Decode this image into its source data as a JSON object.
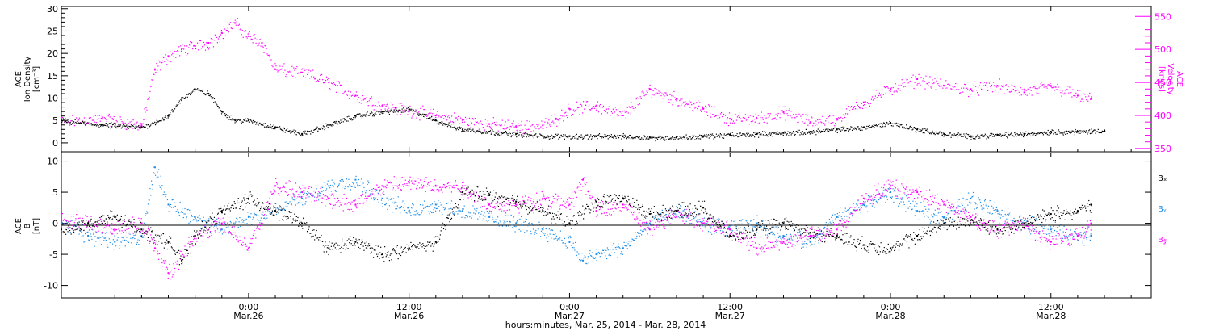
{
  "colors": {
    "black": "#000000",
    "magenta": "#ff00ff",
    "blue": "#1e8ce6"
  },
  "xaxis": {
    "title": "hours:minutes, Mar. 25, 2014 - Mar. 28, 2014",
    "ticks": [
      {
        "time": "0:00",
        "date": "Mar.26",
        "hours": 24
      },
      {
        "time": "12:00",
        "date": "Mar.26",
        "hours": 36
      },
      {
        "time": "0:00",
        "date": "Mar.27",
        "hours": 48
      },
      {
        "time": "12:00",
        "date": "Mar.27",
        "hours": 60
      },
      {
        "time": "0:00",
        "date": "Mar.28",
        "hours": 72
      },
      {
        "time": "12:00",
        "date": "Mar.28",
        "hours": 84
      }
    ]
  },
  "top_panel": {
    "left_label": [
      "ACE",
      "Ion Density",
      "[cm⁻³]"
    ],
    "right_label": [
      "ACE",
      "Velocity",
      "[km/s]"
    ]
  },
  "bottom_panel": {
    "left_label": [
      "ACE",
      "B",
      "[nT]"
    ],
    "legend": [
      "Bₓ",
      "Bᵧ",
      "B𝓏"
    ]
  },
  "chart_data": [
    {
      "type": "scatter",
      "panel": "top",
      "xlim_hours": [
        10,
        91.5
      ],
      "ylim": [
        -2,
        30.5
      ],
      "yticks": [
        "30",
        "25",
        "20",
        "15",
        "10",
        "5",
        "0"
      ],
      "y2lim": [
        345,
        565
      ],
      "y2ticks": [
        "550",
        "500",
        "450",
        "400",
        "350"
      ],
      "series": [
        {
          "name": "Ion Density",
          "axis": "left",
          "color": "#000000",
          "x": [
            10,
            13,
            16,
            18,
            19,
            20,
            21,
            22,
            23,
            24,
            26,
            28,
            30,
            32,
            34,
            36,
            38,
            40,
            42,
            44,
            46,
            48,
            50,
            52,
            54,
            56,
            58,
            60,
            62,
            64,
            66,
            68,
            70,
            72,
            74,
            76,
            78,
            80,
            82,
            84,
            86,
            88
          ],
          "y": [
            5,
            4,
            3.5,
            6,
            10,
            12,
            11,
            7,
            5,
            5,
            3.5,
            2,
            4,
            6,
            7,
            7.5,
            5,
            3,
            2.5,
            2,
            1.5,
            1.5,
            1.5,
            1.5,
            1.2,
            1.2,
            1.5,
            1.8,
            2,
            2.2,
            2.5,
            3,
            3.5,
            4.5,
            3,
            2,
            1.5,
            1.8,
            2,
            2.5,
            2.5,
            2.8
          ]
        },
        {
          "name": "Velocity",
          "axis": "right",
          "color": "#ff00ff",
          "x": [
            10,
            13,
            16,
            17,
            18,
            19,
            20,
            21,
            22,
            23,
            24,
            25,
            26,
            28,
            30,
            32,
            34,
            36,
            38,
            40,
            42,
            44,
            46,
            47,
            48,
            50,
            52,
            54,
            56,
            58,
            60,
            62,
            64,
            66,
            68,
            70,
            72,
            74,
            76,
            78,
            80,
            82,
            84,
            86,
            87
          ],
          "y": [
            390,
            395,
            385,
            470,
            490,
            500,
            505,
            510,
            525,
            540,
            520,
            510,
            470,
            465,
            450,
            430,
            415,
            408,
            400,
            393,
            387,
            383,
            385,
            395,
            410,
            415,
            400,
            440,
            425,
            410,
            395,
            395,
            405,
            390,
            395,
            420,
            440,
            455,
            445,
            440,
            445,
            435,
            445,
            430,
            425
          ]
        }
      ]
    },
    {
      "type": "scatter",
      "panel": "bottom",
      "xlim_hours": [
        10,
        91.5
      ],
      "ylim": [
        -12,
        11.5
      ],
      "yticks": [
        "10",
        "5",
        "0",
        "-5",
        "-10"
      ],
      "series": [
        {
          "name": "Bₓ",
          "color": "#000000",
          "x": [
            10,
            12,
            14,
            16,
            18,
            19,
            20,
            22,
            24,
            26,
            28,
            30,
            32,
            34,
            36,
            38,
            40,
            42,
            44,
            46,
            48,
            50,
            52,
            54,
            56,
            58,
            60,
            62,
            64,
            66,
            68,
            70,
            72,
            74,
            76,
            78,
            80,
            82,
            84,
            86,
            87
          ],
          "y": [
            -1,
            0,
            1,
            -1,
            -3,
            -6,
            -2,
            2,
            4,
            2,
            0,
            -4,
            -3,
            -5,
            -4,
            -3,
            5,
            4.5,
            3.5,
            2,
            0,
            3.5,
            4,
            1.5,
            2,
            2.5,
            -2,
            -1,
            0,
            -1.5,
            -2,
            -3.5,
            -4,
            -2,
            0,
            0.5,
            -1,
            0,
            1.5,
            2,
            3
          ]
        },
        {
          "name": "Bᵧ",
          "color": "#1e8ce6",
          "x": [
            10,
            12,
            14,
            16,
            17,
            18,
            20,
            22,
            24,
            26,
            28,
            30,
            32,
            34,
            36,
            38,
            40,
            42,
            44,
            46,
            48,
            49,
            50,
            52,
            54,
            56,
            58,
            60,
            62,
            64,
            66,
            68,
            70,
            72,
            74,
            76,
            78,
            80,
            82,
            84,
            86,
            87
          ],
          "y": [
            0,
            -2,
            -3,
            -2,
            9,
            3,
            1,
            -1,
            1,
            2,
            4,
            6,
            7,
            4,
            2,
            3,
            2,
            1,
            0,
            -1,
            -3,
            -6,
            -5,
            -4,
            0,
            2,
            0,
            -1,
            0,
            -2,
            -3,
            1,
            3,
            5,
            2,
            1,
            4,
            2,
            0,
            -1,
            -2,
            -2
          ]
        },
        {
          "name": "B𝓏",
          "color": "#ff00ff",
          "x": [
            10,
            12,
            14,
            16,
            17,
            18,
            20,
            22,
            24,
            26,
            28,
            30,
            32,
            34,
            36,
            38,
            40,
            42,
            44,
            46,
            48,
            49,
            50,
            52,
            54,
            56,
            58,
            60,
            62,
            64,
            66,
            68,
            70,
            72,
            74,
            76,
            78,
            80,
            82,
            84,
            86,
            87
          ],
          "y": [
            0.5,
            0,
            -1,
            0,
            -4,
            -8,
            -2,
            0,
            -4,
            6,
            5,
            4,
            3,
            6,
            6.5,
            6,
            6,
            3,
            3,
            4,
            3,
            7,
            2,
            3,
            -1,
            2,
            0,
            -1,
            -4,
            -3,
            -2,
            -1,
            4,
            6,
            5,
            3,
            1,
            -1,
            0,
            -3,
            -2,
            0
          ]
        }
      ]
    }
  ]
}
